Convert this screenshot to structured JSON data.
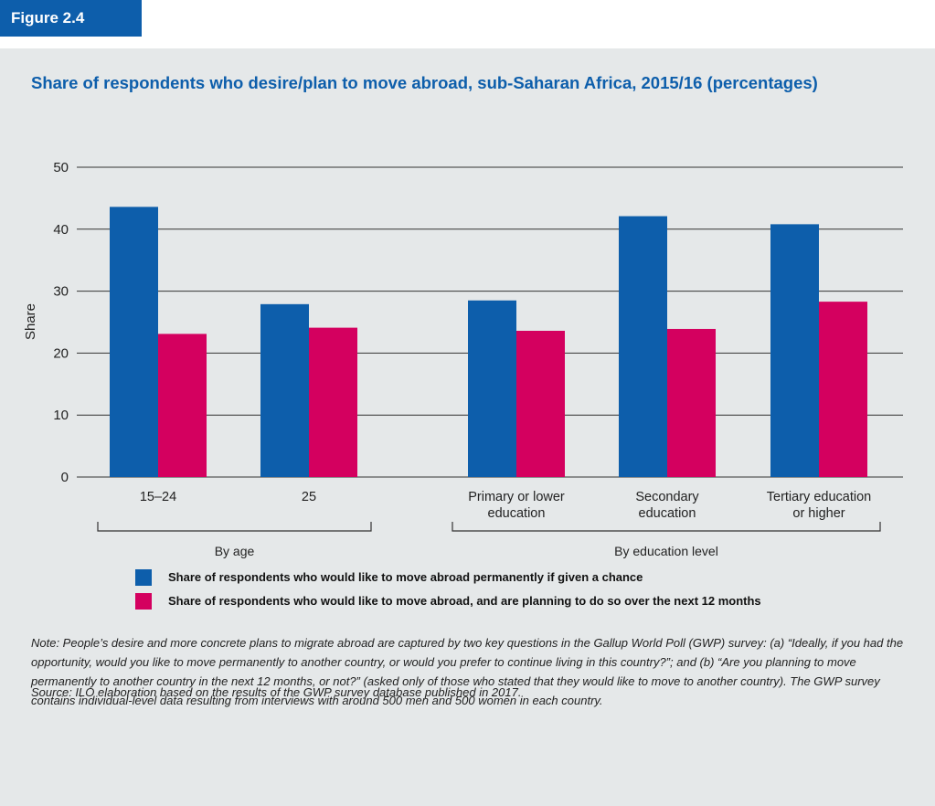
{
  "figure_label": "Figure 2.4",
  "note": "Note: People’s desire and more concrete plans to migrate abroad are captured by two key questions in the Gallup World Poll (GWP) survey: (a) “Ideally, if you had the opportunity, would you like to move permanently to another country, or would you prefer to continue living in this country?”; and (b) “Are you planning to move permanently to another country in the next 12 months, or not?” (asked only of those who stated that they would like to move to another country). The GWP survey contains individual-level data resulting from interviews with around 500 men and 500 women in each country.",
  "source": "Source: ILO elaboration based on the results of the GWP survey database published in 2017.",
  "chart_data": {
    "type": "bar",
    "title": "Share of respondents who desire/plan to move abroad, sub-Saharan Africa, 2015/16 (percentages)",
    "ylabel": "Share",
    "xlabel": "",
    "ylim": [
      0,
      50
    ],
    "yticks": [
      0,
      10,
      20,
      30,
      40,
      50
    ],
    "grid": true,
    "legend_position": "bottom",
    "categories": [
      [
        "15–24"
      ],
      [
        "25"
      ],
      [
        "Primary or lower",
        "education"
      ],
      [
        "Secondary",
        "education"
      ],
      [
        "Tertiary education",
        "or higher"
      ]
    ],
    "groups": [
      {
        "label": "By age",
        "categories": [
          0,
          1
        ]
      },
      {
        "label": "By education level",
        "categories": [
          2,
          3,
          4
        ]
      }
    ],
    "series": [
      {
        "name": "Share of respondents who would like to move abroad permanently if given a chance",
        "color": "#0d5eab",
        "values": [
          43.6,
          27.9,
          28.5,
          42.1,
          40.8
        ]
      },
      {
        "name": "Share of respondents who would like to move abroad, and are planning to do so over the next 12 months",
        "color": "#d4005f",
        "values": [
          23.1,
          24.1,
          23.6,
          23.9,
          28.3
        ]
      }
    ]
  }
}
